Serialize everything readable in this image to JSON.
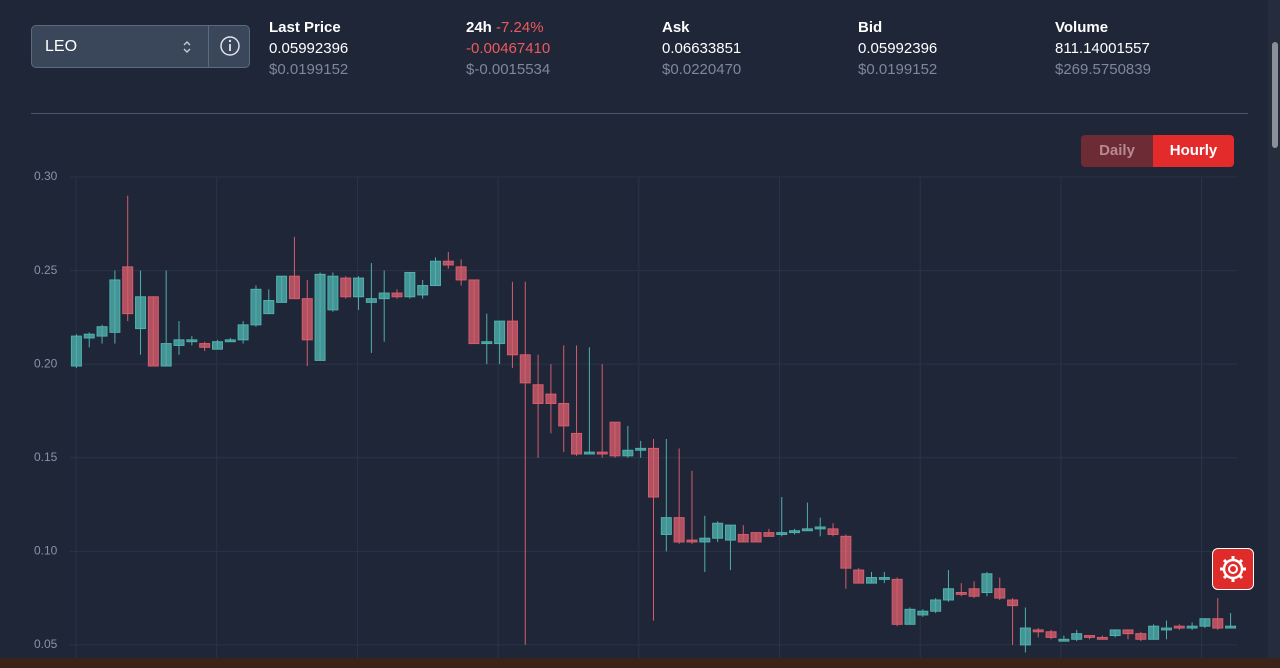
{
  "selector": {
    "value": "LEO"
  },
  "stats": [
    {
      "label": "Last Price",
      "value": "0.05992396",
      "usd": "$0.0199152"
    },
    {
      "label": "24h",
      "change": "-7.24%",
      "value": "-0.00467410",
      "usd": "$-0.0015534"
    },
    {
      "label": "Ask",
      "value": "0.06633851",
      "usd": "$0.0220470"
    },
    {
      "label": "Bid",
      "value": "0.05992396",
      "usd": "$0.0199152"
    },
    {
      "label": "Volume",
      "value": "811.14001557",
      "usd": "$269.5750839"
    }
  ],
  "buttons": [
    "Daily",
    "Hourly"
  ],
  "chart_data": {
    "type": "candlestick",
    "up_color": "#4fb0ac",
    "down_color": "#d45d6c",
    "grid": true,
    "ylim": [
      0.043,
      0.3
    ],
    "yticks": [
      {
        "value": 0.3,
        "label": "0.30"
      },
      0.25,
      {
        "value": 0.2,
        "label": "0.20"
      },
      0.15,
      {
        "value": 0.1,
        "label": "0.10"
      },
      0.05
    ],
    "open": [
      0.199,
      0.214,
      0.215,
      0.217,
      0.252,
      0.219,
      0.236,
      0.199,
      0.21,
      0.212,
      0.211,
      0.208,
      0.212,
      0.213,
      0.221,
      0.227,
      0.233,
      0.247,
      0.235,
      0.202,
      0.229,
      0.246,
      0.236,
      0.233,
      0.235,
      0.238,
      0.236,
      0.237,
      0.242,
      0.255,
      0.252,
      0.245,
      0.211,
      0.211,
      0.223,
      0.205,
      0.189,
      0.184,
      0.179,
      0.163,
      0.152,
      0.153,
      0.169,
      0.151,
      0.154,
      0.155,
      0.109,
      0.118,
      0.106,
      0.105,
      0.107,
      0.106,
      0.109,
      0.11,
      0.11,
      0.109,
      0.11,
      0.111,
      0.112,
      0.112,
      0.108,
      0.09,
      0.083,
      0.085,
      0.085,
      0.061,
      0.066,
      0.068,
      0.074,
      0.078,
      0.08,
      0.078,
      0.08,
      0.074,
      0.05,
      0.058,
      0.057,
      0.052,
      0.053,
      0.055,
      0.054,
      0.055,
      0.058,
      0.056,
      0.053,
      0.058,
      0.06,
      0.059,
      0.06,
      0.064,
      0.059
    ],
    "high": [
      0.216,
      0.217,
      0.221,
      0.25,
      0.29,
      0.25,
      0.236,
      0.25,
      0.223,
      0.215,
      0.212,
      0.213,
      0.214,
      0.223,
      0.242,
      0.24,
      0.247,
      0.268,
      0.245,
      0.249,
      0.249,
      0.247,
      0.247,
      0.254,
      0.25,
      0.24,
      0.249,
      0.245,
      0.257,
      0.26,
      0.256,
      0.245,
      0.227,
      0.223,
      0.244,
      0.244,
      0.205,
      0.2,
      0.21,
      0.21,
      0.209,
      0.2,
      0.169,
      0.167,
      0.159,
      0.16,
      0.16,
      0.155,
      0.143,
      0.119,
      0.116,
      0.114,
      0.114,
      0.11,
      0.112,
      0.129,
      0.112,
      0.126,
      0.118,
      0.115,
      0.109,
      0.091,
      0.089,
      0.089,
      0.086,
      0.07,
      0.069,
      0.075,
      0.09,
      0.083,
      0.084,
      0.089,
      0.086,
      0.075,
      0.07,
      0.059,
      0.058,
      0.055,
      0.058,
      0.055,
      0.055,
      0.058,
      0.058,
      0.057,
      0.061,
      0.063,
      0.061,
      0.062,
      0.064,
      0.075,
      0.067
    ],
    "low": [
      0.198,
      0.209,
      0.211,
      0.211,
      0.223,
      0.205,
      0.199,
      0.199,
      0.205,
      0.21,
      0.207,
      0.208,
      0.212,
      0.211,
      0.22,
      0.227,
      0.233,
      0.235,
      0.199,
      0.202,
      0.228,
      0.235,
      0.229,
      0.206,
      0.212,
      0.235,
      0.235,
      0.235,
      0.242,
      0.251,
      0.242,
      0.211,
      0.2,
      0.2,
      0.198,
      0.05,
      0.15,
      0.163,
      0.153,
      0.151,
      0.152,
      0.15,
      0.15,
      0.15,
      0.15,
      0.063,
      0.1,
      0.104,
      0.104,
      0.089,
      0.105,
      0.09,
      0.105,
      0.105,
      0.108,
      0.108,
      0.109,
      0.111,
      0.108,
      0.108,
      0.08,
      0.083,
      0.083,
      0.083,
      0.06,
      0.061,
      0.065,
      0.067,
      0.073,
      0.076,
      0.075,
      0.076,
      0.074,
      0.05,
      0.046,
      0.054,
      0.053,
      0.052,
      0.052,
      0.053,
      0.053,
      0.054,
      0.053,
      0.052,
      0.053,
      0.053,
      0.058,
      0.058,
      0.059,
      0.058,
      0.059
    ],
    "close": [
      0.215,
      0.216,
      0.22,
      0.245,
      0.227,
      0.236,
      0.199,
      0.211,
      0.213,
      0.213,
      0.209,
      0.212,
      0.213,
      0.221,
      0.24,
      0.234,
      0.247,
      0.235,
      0.213,
      0.248,
      0.247,
      0.236,
      0.246,
      0.235,
      0.238,
      0.236,
      0.249,
      0.242,
      0.255,
      0.253,
      0.245,
      0.211,
      0.212,
      0.223,
      0.205,
      0.19,
      0.179,
      0.179,
      0.167,
      0.152,
      0.153,
      0.152,
      0.151,
      0.154,
      0.155,
      0.129,
      0.118,
      0.105,
      0.105,
      0.107,
      0.115,
      0.114,
      0.105,
      0.105,
      0.108,
      0.11,
      0.111,
      0.112,
      0.113,
      0.109,
      0.091,
      0.083,
      0.086,
      0.086,
      0.061,
      0.069,
      0.068,
      0.074,
      0.08,
      0.077,
      0.076,
      0.088,
      0.075,
      0.071,
      0.059,
      0.057,
      0.054,
      0.053,
      0.056,
      0.054,
      0.053,
      0.058,
      0.056,
      0.053,
      0.06,
      0.059,
      0.059,
      0.06,
      0.064,
      0.059,
      0.06
    ]
  }
}
